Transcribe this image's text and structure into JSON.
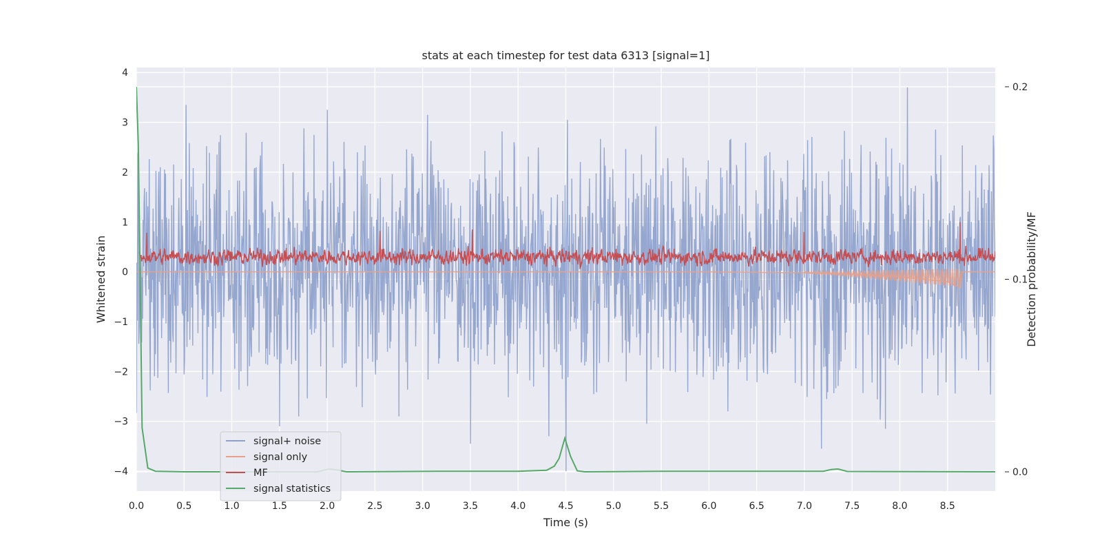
{
  "chart_data": {
    "type": "line",
    "title": "stats at each timestep for test data 6313 [signal=1]",
    "xlabel": "Time (s)",
    "ylabel": "Whitened strain",
    "y2label": "Detection probability/MF",
    "xlim": [
      0.0,
      9.0
    ],
    "ylim": [
      -4.4,
      4.1
    ],
    "y2lim": [
      -0.01,
      0.21
    ],
    "xticks": [
      "0.0",
      "0.5",
      "1.0",
      "1.5",
      "2.0",
      "2.5",
      "3.0",
      "3.5",
      "4.0",
      "4.5",
      "5.0",
      "5.5",
      "6.0",
      "6.5",
      "7.0",
      "7.5",
      "8.0",
      "8.5"
    ],
    "yticks": [
      "−4",
      "−3",
      "−2",
      "−1",
      "0",
      "1",
      "2",
      "3",
      "4"
    ],
    "y2ticks": [
      "0.0",
      "0.1",
      "0.2"
    ],
    "grid": true,
    "legend_position": "lower-left",
    "background": "#eaeaf2",
    "series": [
      {
        "name": "signal+ noise",
        "axis": "left",
        "color": "#8da0cb",
        "kind": "dense-noise",
        "sample_rate_hz": 200,
        "typical_range": [
          -1.8,
          2.0
        ],
        "extremes": [
          {
            "x": 0.52,
            "y": 3.35
          },
          {
            "x": 1.5,
            "y": -3.1
          },
          {
            "x": 2.0,
            "y": 3.25
          },
          {
            "x": 3.05,
            "y": 3.15
          },
          {
            "x": 3.5,
            "y": -3.45
          },
          {
            "x": 4.32,
            "y": -3.3
          },
          {
            "x": 4.5,
            "y": -4.0
          },
          {
            "x": 4.52,
            "y": 3.05
          },
          {
            "x": 5.35,
            "y": -3.05
          },
          {
            "x": 7.18,
            "y": -3.55
          },
          {
            "x": 7.85,
            "y": -3.15
          },
          {
            "x": 8.08,
            "y": 3.7
          },
          {
            "x": 1.7,
            "y": -2.9
          },
          {
            "x": 2.75,
            "y": -2.9
          },
          {
            "x": 6.2,
            "y": -2.8
          }
        ]
      },
      {
        "name": "signal only",
        "axis": "left",
        "color": "#e8a088",
        "points": [
          {
            "x": 0.0,
            "y": 0.0
          },
          {
            "x": 6.0,
            "y": 0.0
          },
          {
            "x": 7.0,
            "y": -0.02
          },
          {
            "x": 7.5,
            "y": -0.05
          },
          {
            "x": 8.0,
            "y": -0.1
          },
          {
            "x": 8.5,
            "y": -0.2
          },
          {
            "x": 8.64,
            "y": -0.32
          },
          {
            "x": 8.65,
            "y": 0.0
          },
          {
            "x": 9.0,
            "y": 0.0
          }
        ]
      },
      {
        "name": "MF",
        "axis": "left",
        "color": "#c44e52",
        "kind": "dense-noise",
        "typical_range": [
          0.05,
          0.75
        ],
        "mean": 0.3,
        "extremes": [
          {
            "x": 3.5,
            "y": 0.85
          },
          {
            "x": 2.53,
            "y": 0.82
          },
          {
            "x": 6.99,
            "y": 0.8
          },
          {
            "x": 8.63,
            "y": 1.0
          },
          {
            "x": 0.08,
            "y": 0.78
          }
        ]
      },
      {
        "name": "signal statistics",
        "axis": "right",
        "color": "#55a868",
        "points": [
          {
            "x": 0.0,
            "y": 0.2
          },
          {
            "x": 0.02,
            "y": 0.17
          },
          {
            "x": 0.04,
            "y": 0.1
          },
          {
            "x": 0.06,
            "y": 0.023
          },
          {
            "x": 0.12,
            "y": 0.002
          },
          {
            "x": 0.2,
            "y": 0.0003
          },
          {
            "x": 0.5,
            "y": 0.0
          },
          {
            "x": 1.9,
            "y": 0.0
          },
          {
            "x": 2.02,
            "y": 0.0015
          },
          {
            "x": 2.1,
            "y": 0.001
          },
          {
            "x": 2.2,
            "y": 0.0
          },
          {
            "x": 3.25,
            "y": 0.0003
          },
          {
            "x": 4.0,
            "y": 0.0003
          },
          {
            "x": 4.3,
            "y": 0.0008
          },
          {
            "x": 4.38,
            "y": 0.003
          },
          {
            "x": 4.43,
            "y": 0.007
          },
          {
            "x": 4.49,
            "y": 0.0175
          },
          {
            "x": 4.55,
            "y": 0.008
          },
          {
            "x": 4.62,
            "y": 0.0005
          },
          {
            "x": 4.7,
            "y": 0.0
          },
          {
            "x": 5.5,
            "y": 0.0003
          },
          {
            "x": 7.2,
            "y": 0.0003
          },
          {
            "x": 7.28,
            "y": 0.0012
          },
          {
            "x": 7.35,
            "y": 0.0015
          },
          {
            "x": 7.45,
            "y": 0.0002
          },
          {
            "x": 9.0,
            "y": 0.0
          }
        ]
      }
    ]
  }
}
